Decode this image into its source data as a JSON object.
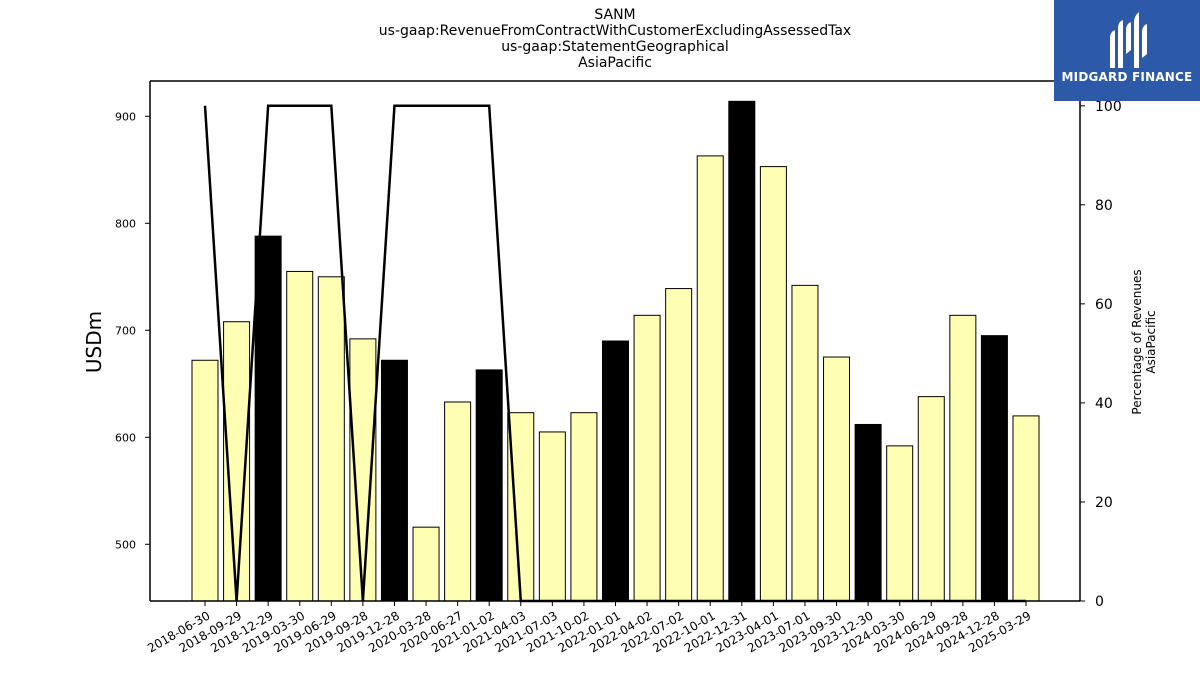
{
  "title_lines": [
    "SANM",
    "us-gaap:RevenueFromContractWithCustomerExcludingAssessedTax",
    "us-gaap:StatementGeographical",
    "AsiaPacific"
  ],
  "logo": {
    "text": "MIDGARD FINANCE",
    "icon": "midgard-logo-icon",
    "background": "#2c5aa8"
  },
  "chart_data": {
    "type": "bar",
    "categories": [
      "2018-06-30",
      "2018-09-29",
      "2018-12-29",
      "2019-03-30",
      "2019-06-29",
      "2019-09-28",
      "2019-12-28",
      "2020-03-28",
      "2020-06-27",
      "2021-01-02",
      "2021-04-03",
      "2021-07-03",
      "2021-10-02",
      "2022-01-01",
      "2022-04-02",
      "2022-07-02",
      "2022-10-01",
      "2022-12-31",
      "2023-04-01",
      "2023-07-01",
      "2023-09-30",
      "2023-12-30",
      "2024-03-30",
      "2024-06-29",
      "2024-09-28",
      "2024-12-28",
      "2025-03-29"
    ],
    "series": [
      {
        "axis": "left",
        "chart_type": "bar",
        "values": [
          672,
          708,
          788,
          755,
          750,
          692,
          672,
          516,
          633,
          663,
          623,
          605,
          623,
          690,
          714,
          739,
          863,
          914,
          853,
          742,
          675,
          612,
          592,
          638,
          714,
          695,
          620
        ],
        "bar_colors": [
          "#ffffb3",
          "#ffffb3",
          "#000000",
          "#ffffb3",
          "#ffffb3",
          "#ffffb3",
          "#000000",
          "#ffffb3",
          "#ffffb3",
          "#000000",
          "#ffffb3",
          "#ffffb3",
          "#ffffb3",
          "#000000",
          "#ffffb3",
          "#ffffb3",
          "#ffffb3",
          "#000000",
          "#ffffb3",
          "#ffffb3",
          "#ffffb3",
          "#000000",
          "#ffffb3",
          "#ffffb3",
          "#ffffb3",
          "#000000",
          "#ffffb3"
        ]
      },
      {
        "axis": "right",
        "chart_type": "line",
        "color": "#000000",
        "values": [
          100,
          0,
          100,
          100,
          100,
          0,
          100,
          100,
          100,
          100,
          0,
          0,
          0,
          0,
          0,
          0,
          0,
          0,
          0,
          0,
          0,
          0,
          0,
          0,
          0,
          0,
          0
        ]
      }
    ],
    "ylabel": "USDm",
    "ylabel_right_lines": [
      "Percentage of Revenues",
      "AsiaPacific"
    ],
    "ylim": [
      447,
      933
    ],
    "ylim_right": [
      0,
      105
    ],
    "yticks": [
      500,
      600,
      700,
      800,
      900
    ],
    "yticks_right": [
      0,
      20,
      40,
      60,
      80,
      100
    ],
    "grid": false,
    "legend": "none"
  }
}
